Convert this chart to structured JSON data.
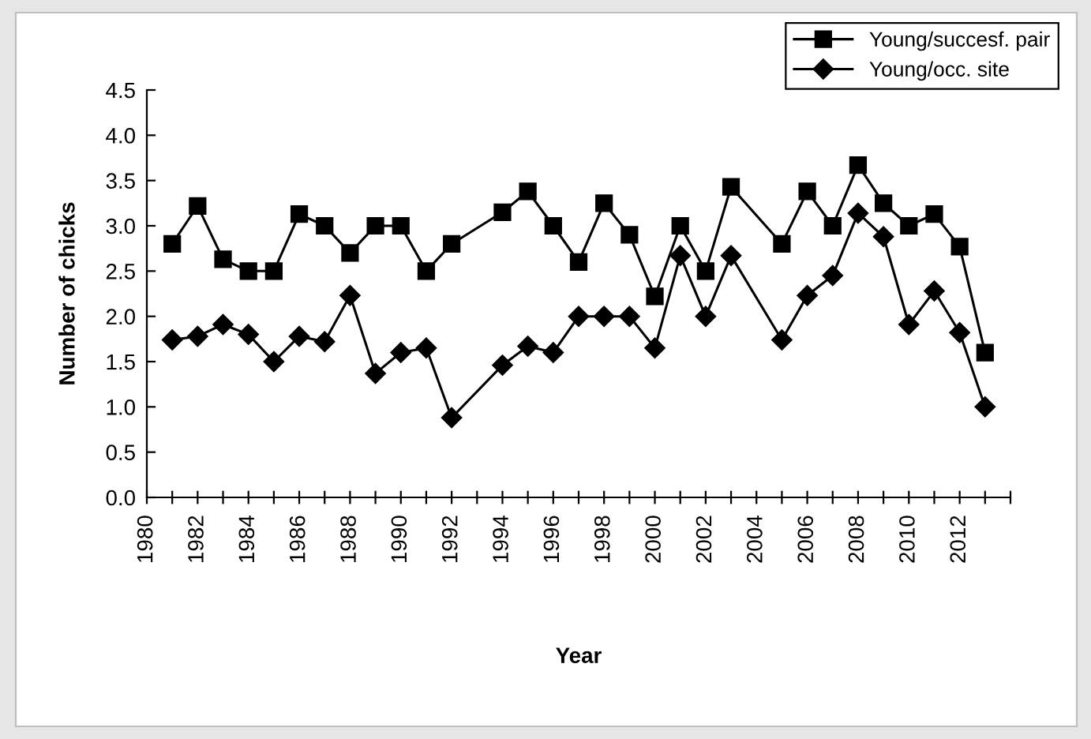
{
  "chart_data": {
    "type": "line",
    "xlabel": "Year",
    "ylabel": "Number of chicks",
    "x": [
      1981,
      1982,
      1983,
      1984,
      1985,
      1986,
      1987,
      1988,
      1989,
      1990,
      1991,
      1992,
      1994,
      1995,
      1996,
      1997,
      1998,
      1999,
      2000,
      2001,
      2002,
      2003,
      2005,
      2006,
      2007,
      2008,
      2009,
      2010,
      2011,
      2012,
      2013
    ],
    "series": [
      {
        "name": "Young/succesf. pair",
        "color": "#000000",
        "marker": "square",
        "values": [
          2.8,
          3.22,
          2.63,
          2.5,
          2.5,
          3.13,
          3.0,
          2.7,
          3.0,
          3.0,
          2.5,
          2.8,
          3.15,
          3.38,
          3.0,
          2.6,
          3.25,
          2.9,
          2.22,
          3.0,
          2.5,
          3.43,
          2.8,
          3.38,
          3.0,
          3.67,
          3.25,
          3.0,
          3.13,
          2.77,
          1.6
        ]
      },
      {
        "name": "Young/occ. site",
        "color": "#000000",
        "marker": "diamond",
        "values": [
          1.74,
          1.78,
          1.91,
          1.8,
          1.5,
          1.78,
          1.72,
          2.23,
          1.37,
          1.6,
          1.65,
          0.88,
          1.46,
          1.67,
          1.6,
          2.0,
          2.0,
          2.0,
          1.65,
          2.67,
          2.0,
          2.67,
          1.74,
          2.23,
          2.45,
          3.14,
          2.88,
          1.91,
          2.28,
          1.82,
          1.0
        ]
      }
    ],
    "xlim": [
      1980,
      2014
    ],
    "xticks": [
      1980,
      {
        "value": 1981,
        "label": null
      },
      1982,
      {
        "value": 1983,
        "label": null
      },
      1984,
      {
        "value": 1985,
        "label": null
      },
      1986,
      {
        "value": 1987,
        "label": null
      },
      1988,
      {
        "value": 1989,
        "label": null
      },
      1990,
      {
        "value": 1991,
        "label": null
      },
      1992,
      {
        "value": 1993,
        "label": null
      },
      1994,
      {
        "value": 1995,
        "label": null
      },
      1996,
      {
        "value": 1997,
        "label": null
      },
      1998,
      {
        "value": 1999,
        "label": null
      },
      2000,
      {
        "value": 2001,
        "label": null
      },
      2002,
      {
        "value": 2003,
        "label": null
      },
      2004,
      {
        "value": 2005,
        "label": null
      },
      2006,
      {
        "value": 2007,
        "label": null
      },
      2008,
      {
        "value": 2009,
        "label": null
      },
      2010,
      {
        "value": 2011,
        "label": null
      },
      2012,
      {
        "value": 2013,
        "label": null
      },
      {
        "value": 2014,
        "label": null
      }
    ],
    "ylim": [
      0,
      4.5
    ],
    "yticks": [
      {
        "value": 0,
        "label": "0.0"
      },
      {
        "value": 0.5,
        "label": "0.5"
      },
      {
        "value": 1,
        "label": "1.0"
      },
      {
        "value": 1.5,
        "label": "1.5"
      },
      {
        "value": 2,
        "label": "2.0"
      },
      {
        "value": 2.5,
        "label": "2.5"
      },
      {
        "value": 3,
        "label": "3.0"
      },
      {
        "value": 3.5,
        "label": "3.5"
      },
      {
        "value": 4,
        "label": "4.0"
      },
      {
        "value": 4.5,
        "label": "4.5"
      }
    ],
    "grid": false,
    "legend": "top right"
  }
}
